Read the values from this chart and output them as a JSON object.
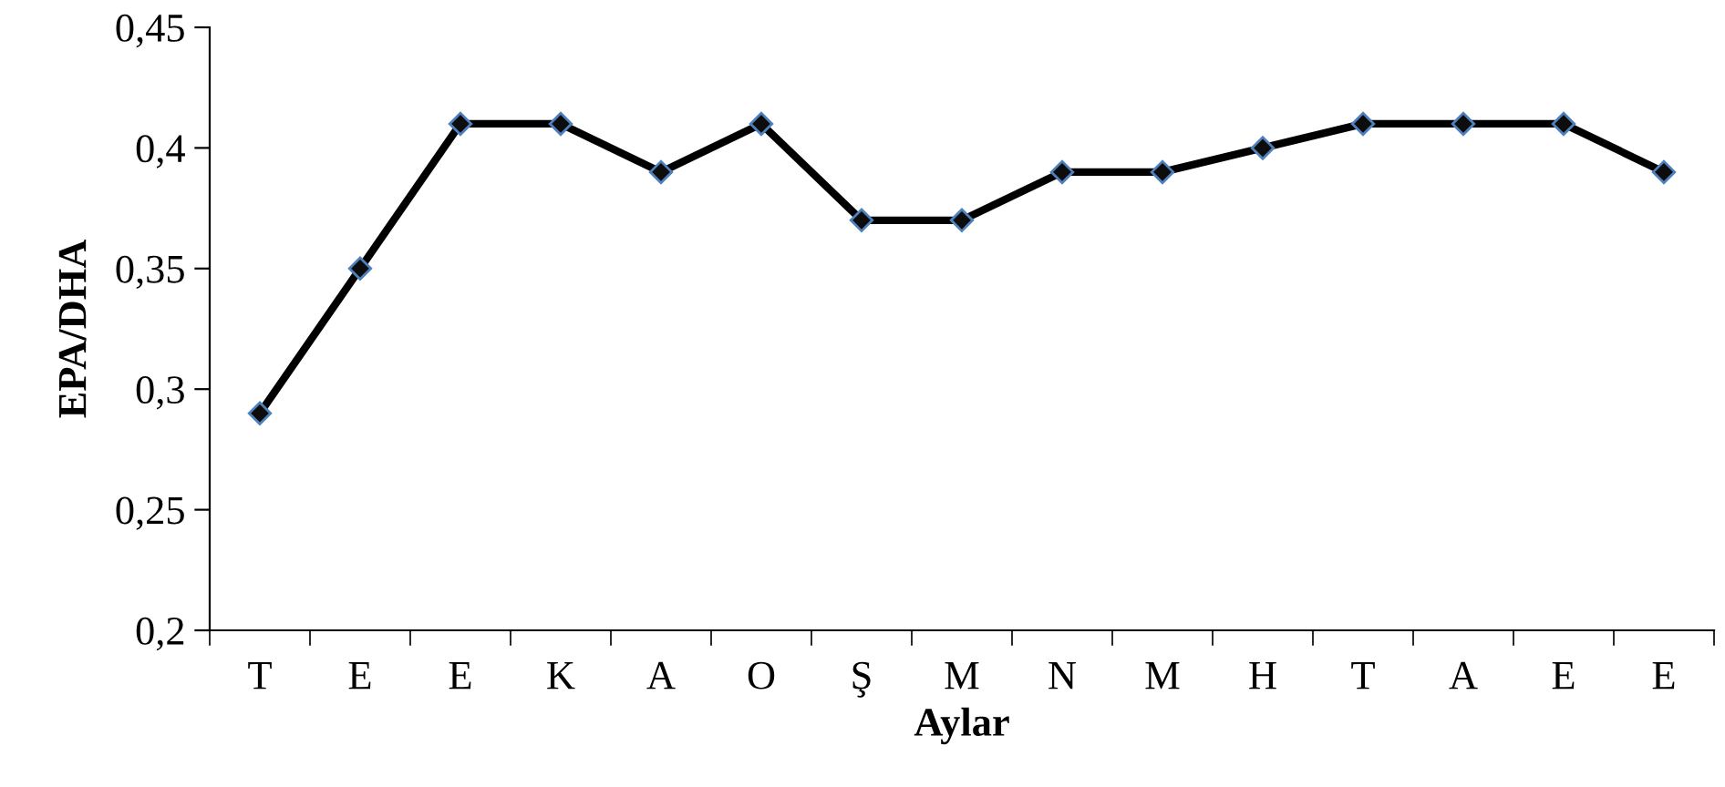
{
  "chart_data": {
    "type": "line",
    "xlabel": "Aylar",
    "ylabel": "EPA/DHA",
    "categories": [
      "T",
      "E",
      "E",
      "K",
      "A",
      "O",
      "Ş",
      "M",
      "N",
      "M",
      "H",
      "T",
      "A",
      "E",
      "E"
    ],
    "series": [
      {
        "color": "#000000",
        "values": [
          0.29,
          0.35,
          0.41,
          0.41,
          0.39,
          0.41,
          0.37,
          0.37,
          0.39,
          0.39,
          0.4,
          0.41,
          0.41,
          0.41,
          0.39
        ]
      }
    ],
    "ylim": [
      0.2,
      0.45
    ],
    "yticks": [
      {
        "value": 0.2,
        "label": "0,2"
      },
      {
        "value": 0.25,
        "label": "0,25"
      },
      {
        "value": 0.3,
        "label": "0,3"
      },
      {
        "value": 0.35,
        "label": "0,35"
      },
      {
        "value": 0.4,
        "label": "0,4"
      },
      {
        "value": 0.45,
        "label": "0,45"
      }
    ],
    "marker": "diamond",
    "line_style": "solid",
    "grid": false,
    "legend": false
  }
}
